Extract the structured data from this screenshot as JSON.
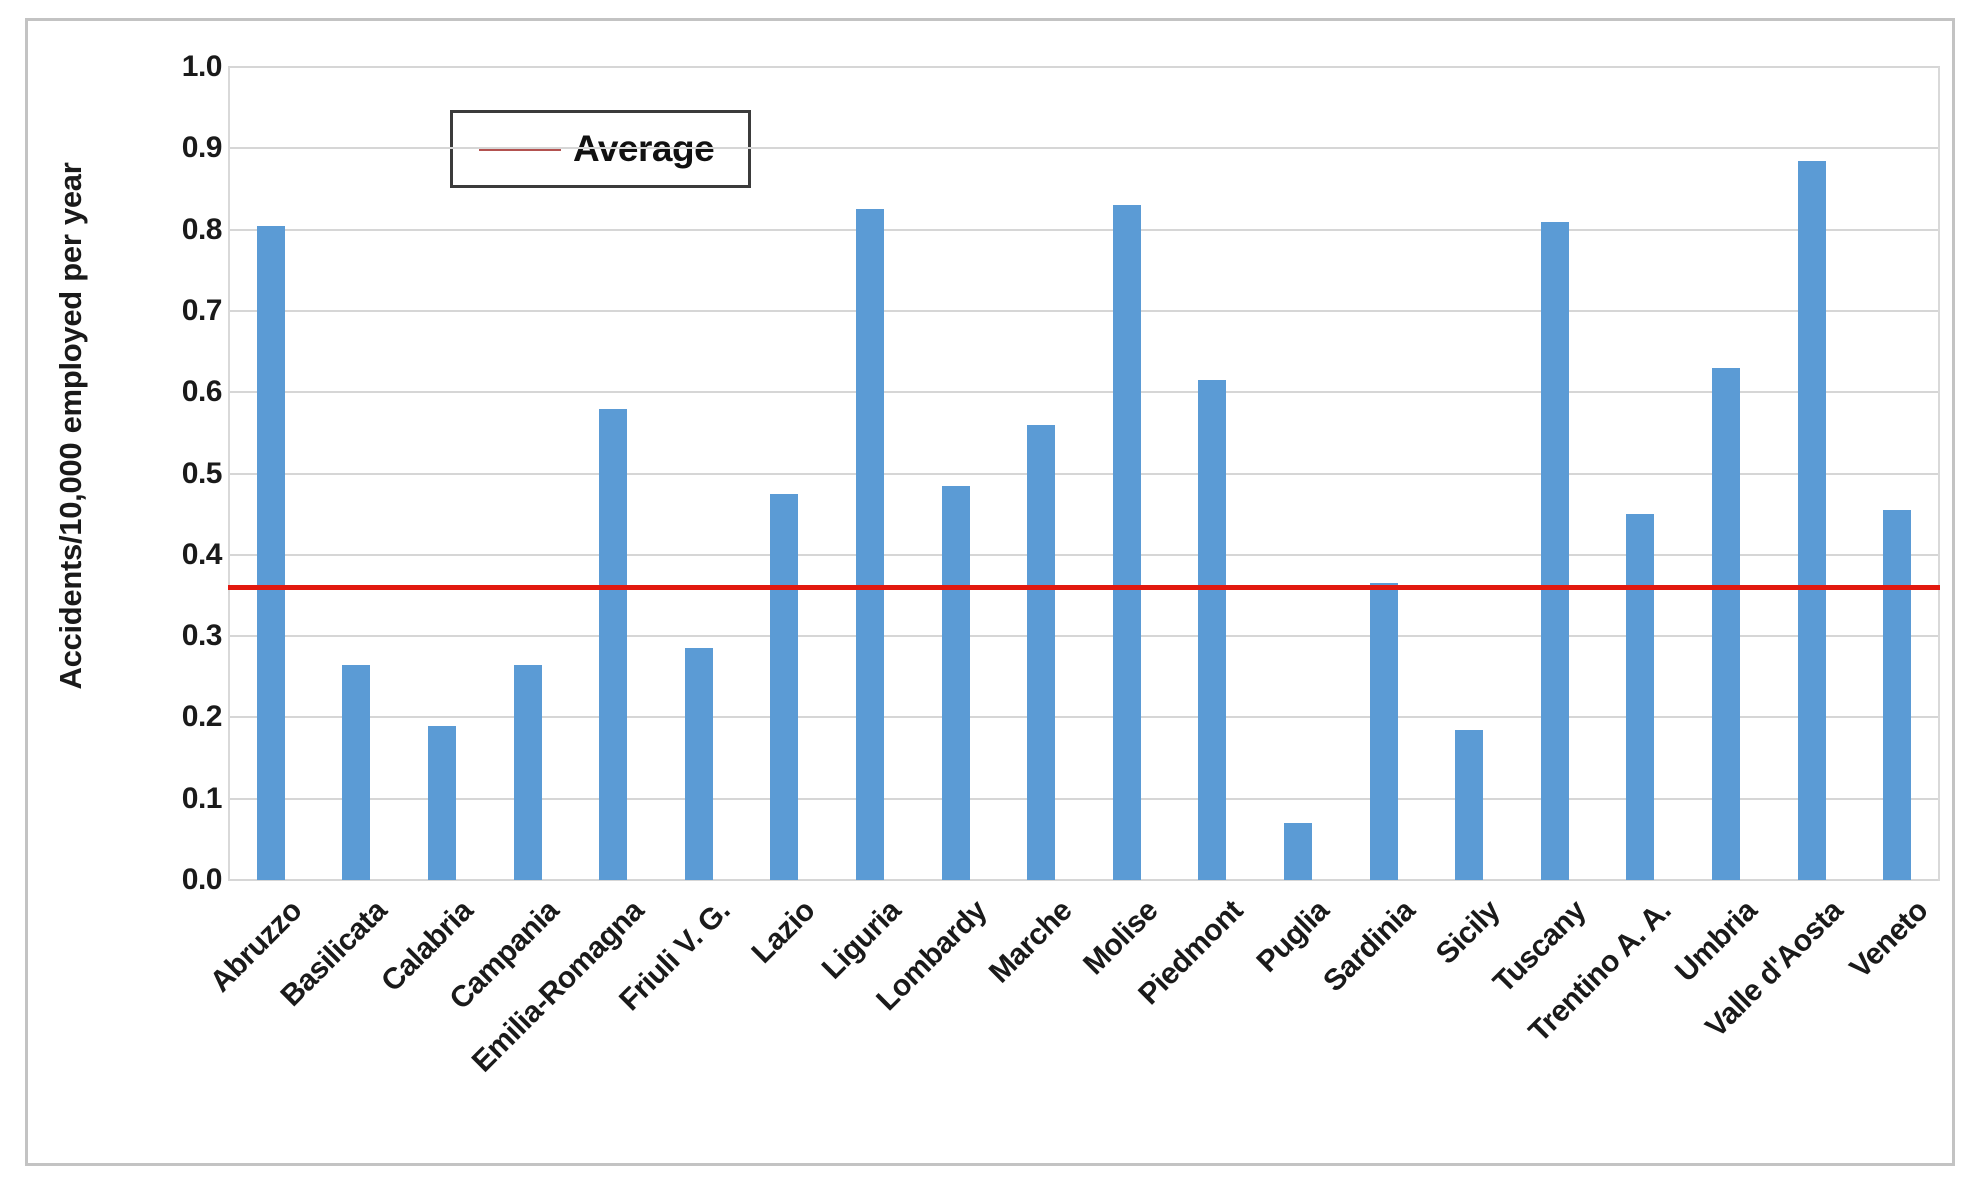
{
  "chart_data": {
    "type": "bar",
    "title": "",
    "xlabel": "",
    "ylabel": "Accidents/10,000 employed per year",
    "ylim": [
      0.0,
      1.0
    ],
    "y_tick_step": 0.1,
    "y_ticks": [
      "1.0",
      "0.9",
      "0.8",
      "0.7",
      "0.6",
      "0.5",
      "0.4",
      "0.3",
      "0.2",
      "0.1",
      "0.0"
    ],
    "grid": true,
    "categories": [
      "Abruzzo",
      "Basilicata",
      "Calabria",
      "Campania",
      "Emilia-Romagna",
      "Friuli V. G.",
      "Lazio",
      "Liguria",
      "Lombardy",
      "Marche",
      "Molise",
      "Piedmont",
      "Puglia",
      "Sardinia",
      "Sicily",
      "Tuscany",
      "Trentino A. A.",
      "Umbria",
      "Valle d'Aosta",
      "Veneto"
    ],
    "values": [
      0.805,
      0.265,
      0.19,
      0.265,
      0.58,
      0.285,
      0.475,
      0.825,
      0.485,
      0.56,
      0.83,
      0.615,
      0.07,
      0.365,
      0.185,
      0.81,
      0.45,
      0.63,
      0.885,
      0.455
    ],
    "average_line": 0.36,
    "legend": {
      "label": "Average",
      "position": "top-center"
    },
    "colors": {
      "bar": "#5b9bd5",
      "average_line": "#e2190f",
      "legend_sample": "#b35250",
      "gridline": "#d6d6d6",
      "frame_border": "#c3c3c3",
      "text": "#1a1a1a"
    }
  }
}
